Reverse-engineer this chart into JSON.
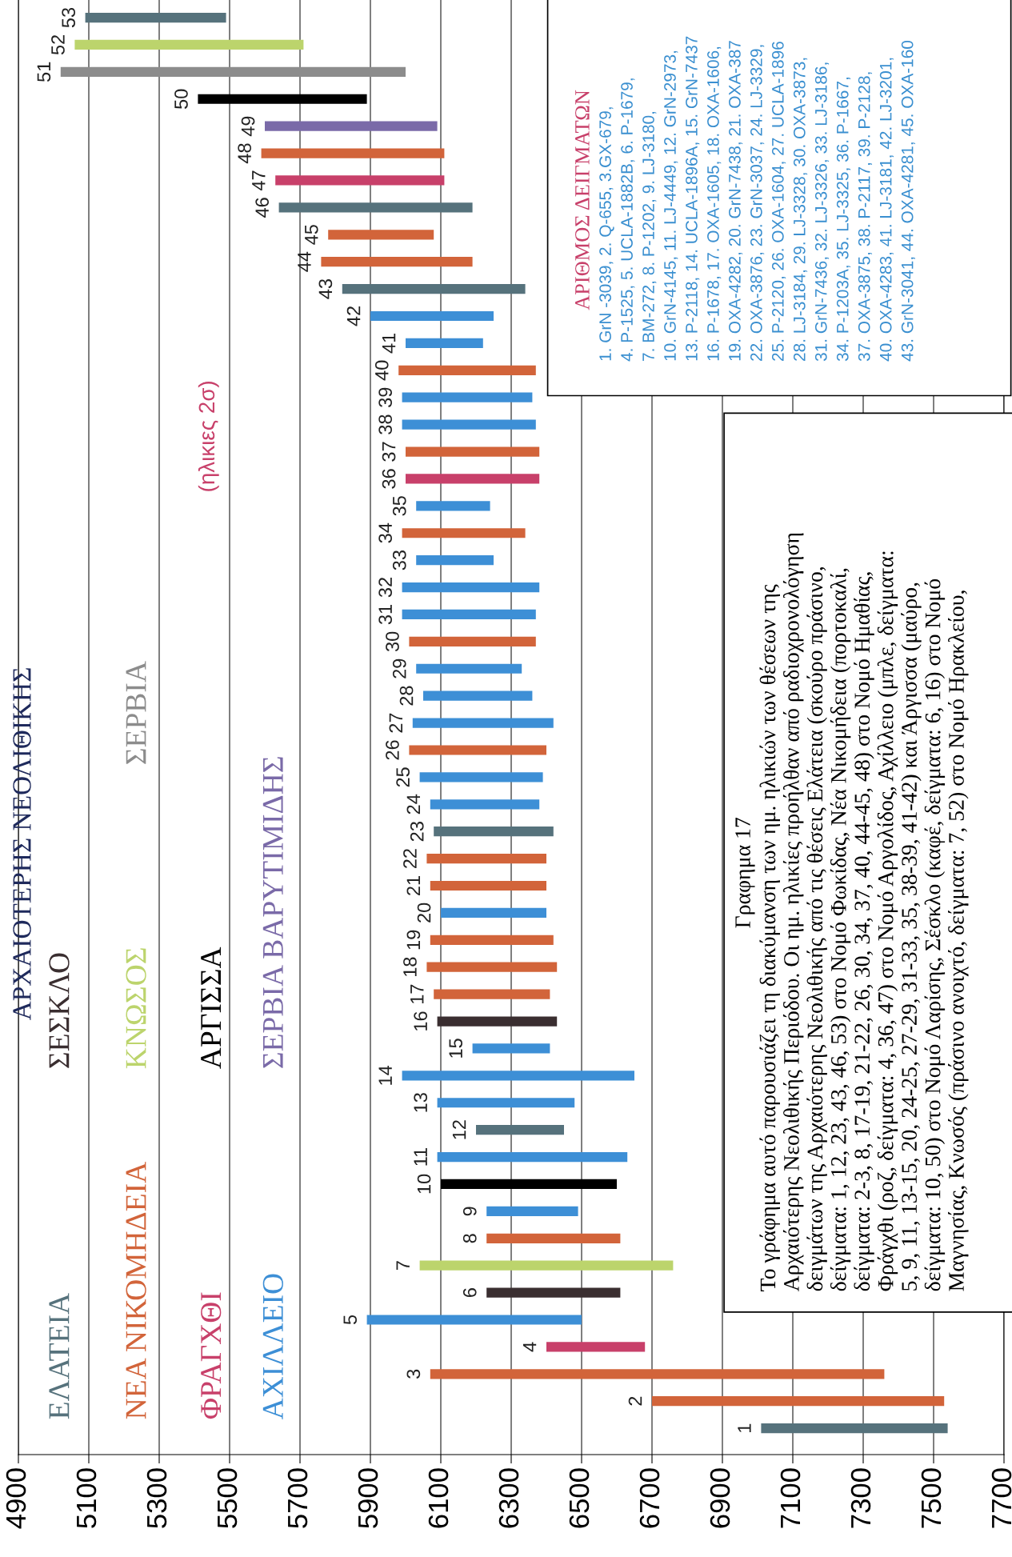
{
  "chart_data": {
    "type": "bar",
    "orientation": "horizontal",
    "title": "ΑΡΧΑΙΟΤΕΡΗΣ ΝΕΟΛΙΘΙΚΗΣ",
    "subtitle": "(ηλικιες 2σ)",
    "categories": [
      "53",
      "52",
      "51",
      "50",
      "49",
      "48",
      "47",
      "46",
      "45",
      "44",
      "43",
      "42",
      "41",
      "40",
      "39",
      "38",
      "37",
      "36",
      "35",
      "34",
      "33",
      "32",
      "31",
      "30",
      "29",
      "28",
      "27",
      "26",
      "25",
      "24",
      "23",
      "22",
      "21",
      "20",
      "19",
      "18",
      "17",
      "16",
      "15",
      "14",
      "13",
      "12",
      "11",
      "10",
      "9",
      "8",
      "7",
      "6",
      "5",
      "4",
      "3",
      "2",
      "1"
    ],
    "series": [
      {
        "name": "ΕΛΑΤΕΙΑ",
        "color": "#56727c",
        "values": [
          400,
          null,
          null,
          null,
          null,
          null,
          null,
          550,
          null,
          null,
          520,
          null,
          null,
          null,
          null,
          null,
          null,
          null,
          null,
          null,
          null,
          null,
          null,
          null,
          null,
          null,
          null,
          null,
          null,
          null,
          340,
          null,
          null,
          null,
          null,
          null,
          null,
          null,
          null,
          null,
          null,
          250,
          null,
          null,
          null,
          null,
          null,
          null,
          null,
          null,
          null,
          null,
          530
        ],
        "base": [
          5090,
          null,
          null,
          null,
          null,
          null,
          null,
          5640,
          null,
          null,
          5820,
          null,
          null,
          null,
          null,
          null,
          null,
          null,
          null,
          null,
          null,
          null,
          null,
          null,
          null,
          null,
          null,
          null,
          null,
          null,
          6080,
          null,
          null,
          null,
          null,
          null,
          null,
          null,
          null,
          null,
          null,
          6200,
          null,
          null,
          null,
          null,
          null,
          null,
          null,
          null,
          null,
          null,
          7010
        ]
      },
      {
        "name": "ΣΕΣΚΛΟ",
        "color": "#3a2e30",
        "values": [
          null,
          null,
          null,
          null,
          null,
          null,
          null,
          null,
          null,
          null,
          null,
          null,
          null,
          null,
          null,
          null,
          null,
          null,
          null,
          null,
          null,
          null,
          null,
          null,
          null,
          null,
          null,
          null,
          null,
          null,
          null,
          null,
          null,
          null,
          null,
          null,
          null,
          340,
          null,
          null,
          null,
          null,
          null,
          null,
          null,
          null,
          null,
          380,
          null,
          null,
          null,
          null,
          null
        ],
        "base": [
          null,
          null,
          null,
          null,
          null,
          null,
          null,
          null,
          null,
          null,
          null,
          null,
          null,
          null,
          null,
          null,
          null,
          null,
          null,
          null,
          null,
          null,
          null,
          null,
          null,
          null,
          null,
          null,
          null,
          null,
          null,
          null,
          null,
          null,
          null,
          null,
          null,
          6090,
          null,
          null,
          null,
          null,
          null,
          null,
          null,
          null,
          null,
          6230,
          null,
          null,
          null,
          null,
          null
        ]
      },
      {
        "name": "ΝΕΑ ΝΙΚΟΜΗΔΕΙΑ",
        "color": "#d2643a",
        "values": [
          null,
          null,
          null,
          null,
          null,
          520,
          null,
          null,
          300,
          430,
          null,
          null,
          null,
          390,
          null,
          null,
          380,
          null,
          null,
          350,
          null,
          null,
          null,
          360,
          null,
          null,
          null,
          390,
          null,
          null,
          null,
          340,
          330,
          null,
          350,
          370,
          330,
          null,
          null,
          null,
          null,
          null,
          null,
          null,
          null,
          380,
          null,
          null,
          null,
          null,
          1290,
          830,
          null
        ],
        "base": [
          null,
          null,
          null,
          null,
          null,
          5590,
          null,
          null,
          5780,
          5760,
          null,
          null,
          null,
          5980,
          null,
          null,
          6000,
          null,
          null,
          5990,
          null,
          null,
          null,
          6010,
          null,
          null,
          null,
          6010,
          null,
          null,
          null,
          6060,
          6070,
          null,
          6070,
          6060,
          6080,
          null,
          null,
          null,
          null,
          null,
          null,
          null,
          null,
          6230,
          null,
          null,
          null,
          null,
          6070,
          6700,
          null
        ]
      },
      {
        "name": "ΚΝΩΣΟΣ",
        "color": "#bcd46c",
        "values": [
          null,
          650,
          null,
          null,
          null,
          null,
          null,
          null,
          null,
          null,
          null,
          null,
          null,
          null,
          null,
          null,
          null,
          null,
          null,
          null,
          null,
          null,
          null,
          null,
          null,
          null,
          null,
          null,
          null,
          null,
          null,
          null,
          null,
          null,
          null,
          null,
          null,
          null,
          null,
          null,
          null,
          null,
          null,
          null,
          null,
          null,
          720,
          null,
          null,
          null,
          null,
          null,
          null
        ],
        "base": [
          null,
          5060,
          null,
          null,
          null,
          null,
          null,
          null,
          null,
          null,
          null,
          null,
          null,
          null,
          null,
          null,
          null,
          null,
          null,
          null,
          null,
          null,
          null,
          null,
          null,
          null,
          null,
          null,
          null,
          null,
          null,
          null,
          null,
          null,
          null,
          null,
          null,
          null,
          null,
          null,
          null,
          null,
          null,
          null,
          null,
          null,
          6040,
          null,
          null,
          null,
          null,
          null,
          null
        ]
      },
      {
        "name": "ΣΕΡΒΙΑ",
        "color": "#8c8c8c",
        "values": [
          null,
          null,
          980,
          null,
          null,
          null,
          null,
          null,
          null,
          null,
          null,
          null,
          null,
          null,
          null,
          null,
          null,
          null,
          null,
          null,
          null,
          null,
          null,
          null,
          null,
          null,
          null,
          null,
          null,
          null,
          null,
          null,
          null,
          null,
          null,
          null,
          null,
          null,
          null,
          null,
          null,
          null,
          null,
          null,
          null,
          null,
          null,
          null,
          null,
          null,
          null,
          null,
          null
        ],
        "base": [
          null,
          null,
          5020,
          null,
          null,
          null,
          null,
          null,
          null,
          null,
          null,
          null,
          null,
          null,
          null,
          null,
          null,
          null,
          null,
          null,
          null,
          null,
          null,
          null,
          null,
          null,
          null,
          null,
          null,
          null,
          null,
          null,
          null,
          null,
          null,
          null,
          null,
          null,
          null,
          null,
          null,
          null,
          null,
          null,
          null,
          null,
          null,
          null,
          null,
          null,
          null,
          null,
          null
        ]
      },
      {
        "name": "ΦΡΑΓΧΘΙ",
        "color": "#c8406a",
        "values": [
          null,
          null,
          null,
          null,
          null,
          null,
          480,
          null,
          null,
          null,
          null,
          null,
          null,
          null,
          null,
          null,
          null,
          380,
          null,
          null,
          null,
          null,
          null,
          null,
          null,
          null,
          null,
          null,
          null,
          null,
          null,
          null,
          null,
          null,
          null,
          null,
          null,
          null,
          null,
          null,
          null,
          null,
          null,
          null,
          null,
          null,
          null,
          null,
          null,
          280,
          null,
          null,
          null
        ],
        "base": [
          null,
          null,
          null,
          null,
          null,
          null,
          5630,
          null,
          null,
          null,
          null,
          null,
          null,
          null,
          null,
          null,
          null,
          6000,
          null,
          null,
          null,
          null,
          null,
          null,
          null,
          null,
          null,
          null,
          null,
          null,
          null,
          null,
          null,
          null,
          null,
          null,
          null,
          null,
          null,
          null,
          null,
          null,
          null,
          null,
          null,
          null,
          null,
          null,
          null,
          6400,
          null,
          null,
          null
        ]
      },
      {
        "name": "ΑΡΓΙΣΣΑ",
        "color": "#000000",
        "values": [
          null,
          null,
          null,
          480,
          null,
          null,
          null,
          null,
          null,
          null,
          null,
          null,
          null,
          null,
          null,
          null,
          null,
          null,
          null,
          null,
          null,
          null,
          null,
          null,
          null,
          null,
          null,
          null,
          null,
          null,
          null,
          null,
          null,
          null,
          null,
          null,
          null,
          null,
          null,
          null,
          null,
          null,
          null,
          500,
          null,
          null,
          null,
          null,
          null,
          null,
          null,
          null,
          null
        ],
        "base": [
          null,
          null,
          null,
          5410,
          null,
          null,
          null,
          null,
          null,
          null,
          null,
          null,
          null,
          null,
          null,
          null,
          null,
          null,
          null,
          null,
          null,
          null,
          null,
          null,
          null,
          null,
          null,
          null,
          null,
          null,
          null,
          null,
          null,
          null,
          null,
          null,
          null,
          null,
          null,
          null,
          null,
          null,
          null,
          6100,
          null,
          null,
          null,
          null,
          null,
          null,
          null,
          null,
          null
        ]
      },
      {
        "name": "ΑΧΙΛΛΕΙΟ",
        "color": "#3d8fd6",
        "values": [
          null,
          null,
          null,
          null,
          null,
          null,
          null,
          null,
          null,
          null,
          null,
          350,
          220,
          null,
          370,
          380,
          null,
          null,
          210,
          null,
          220,
          390,
          380,
          null,
          300,
          310,
          400,
          null,
          350,
          310,
          null,
          null,
          null,
          300,
          null,
          null,
          null,
          null,
          220,
          660,
          390,
          null,
          540,
          null,
          260,
          null,
          null,
          null,
          610,
          null,
          null,
          null,
          null
        ],
        "base": [
          null,
          null,
          null,
          null,
          null,
          null,
          null,
          null,
          null,
          null,
          null,
          5900,
          6000,
          null,
          5990,
          5990,
          null,
          null,
          6030,
          null,
          6030,
          5990,
          5990,
          null,
          6030,
          6050,
          6020,
          null,
          6040,
          6070,
          null,
          null,
          null,
          6100,
          null,
          null,
          null,
          null,
          6190,
          5990,
          6090,
          null,
          6090,
          null,
          6230,
          null,
          null,
          null,
          5890,
          null,
          null,
          null,
          null
        ]
      },
      {
        "name": "ΣΕΡΒΙΑ ΒΑΡΥΤΙΜΙΔΗΣ",
        "color": "#7a6aa8",
        "values": [
          null,
          null,
          null,
          null,
          490,
          null,
          null,
          null,
          null,
          null,
          null,
          null,
          null,
          null,
          null,
          null,
          null,
          null,
          null,
          null,
          null,
          null,
          null,
          null,
          null,
          null,
          null,
          null,
          null,
          null,
          null,
          null,
          null,
          null,
          null,
          null,
          null,
          null,
          null,
          null,
          null,
          null,
          null,
          null,
          null,
          null,
          null,
          null,
          null,
          null,
          null,
          null,
          null
        ],
        "base": [
          null,
          null,
          null,
          null,
          5600,
          null,
          null,
          null,
          null,
          null,
          null,
          null,
          null,
          null,
          null,
          null,
          null,
          null,
          null,
          null,
          null,
          null,
          null,
          null,
          null,
          null,
          null,
          null,
          null,
          null,
          null,
          null,
          null,
          null,
          null,
          null,
          null,
          null,
          null,
          null,
          null,
          null,
          null,
          null,
          null,
          null,
          null,
          null,
          null,
          null,
          null,
          null,
          null
        ]
      }
    ],
    "xlim": [
      4900,
      7700
    ],
    "xticks": [
      4900,
      5100,
      5300,
      5500,
      5700,
      5900,
      6100,
      6300,
      6500,
      6700,
      6900,
      7100,
      7300,
      7500,
      7700
    ],
    "grid": "x",
    "annotations": [
      "Γραφημα 17",
      "Το γράφημα αυτό παρουσιάζει τη διακύμανση των ημ. ηλικιών των θέσεων της\nΑρχαιότερης Νεολιθικής Περιόδου. Οι ημ. ηλικίες προήλθαν από ραδιοχρονολόγηση\nδειγμάτων της Αρχαιότερης Νεολιθικής από τις θέσεις Ελάτεια (σκούρο πράσινο,\nδείγματα: 1, 12, 23, 43, 46, 53) στο Νομό Φωκίδας, Νέα Νικομήδεια (πορτοκαλί,\nδείγματα: 2-3, 8, 17-19, 21-22, 26, 30, 34, 37, 40, 44-45, 48) στο Νομό Ημαθίας,\nΦράγχθι (ροζ, δείγματα: 4, 36, 47) στο Νομό Αργολίδος, Αχίλλειο (μπλε, δείγματα:\n5, 9, 11, 13-15, 20, 24-25, 27-29, 31-33, 35, 38-39, 41-42) και Άργισσα (μαύρο,\nδείγματα: 10, 50) στο Νομό Λαρίσης, Σέσκλο (καφέ, δείγματα: 6, 16) στο Νομό\nΜαγνησίας, Κνωσός (πράσινο ανοιχτό, δείγματα: 7, 52) στο Νομό Ηρακλείου,",
      "ΑΡΙΘΜΟΣ ΔΕΙΓΜΑΤΩΝ",
      "1. GrN -3039, 2. Q-655, 3.GX-679,\n4. P-1525, 5. UCLA-1882B, 6. P-1679,\n7. BM-272, 8. P-1202, 9. LJ-3180,\n10. GrN-4145, 11. LJ-4449, 12. GrN-2973,\n13. P-2118, 14. UCLA-1896A, 15. GrN-7437\n16. P-1678, 17. OXA-1605, 18. OXA-1606,\n19. OXA-4282, 20. GrN-7438, 21. OXA-387\n22. OXA-3876, 23. GrN-3037, 24. LJ-3329,\n25. P-2120, 26. OXA-1604, 27. UCLA-1896\n28. LJ-3184, 29. LJ-3328, 30. OXA-3873,\n31. GrN-7436, 32. LJ-3326, 33. LJ-3186,\n34. P-1203A, 35. LJ-3325, 36. P-1667,\n37. OXA-3875, 38. P-2117, 39. P-2128,\n40. OXA-4283, 41. LJ-3181, 42. LJ-3201,\n43. GrN-3041, 44. OXA-4281, 45. OXA-160"
    ]
  }
}
